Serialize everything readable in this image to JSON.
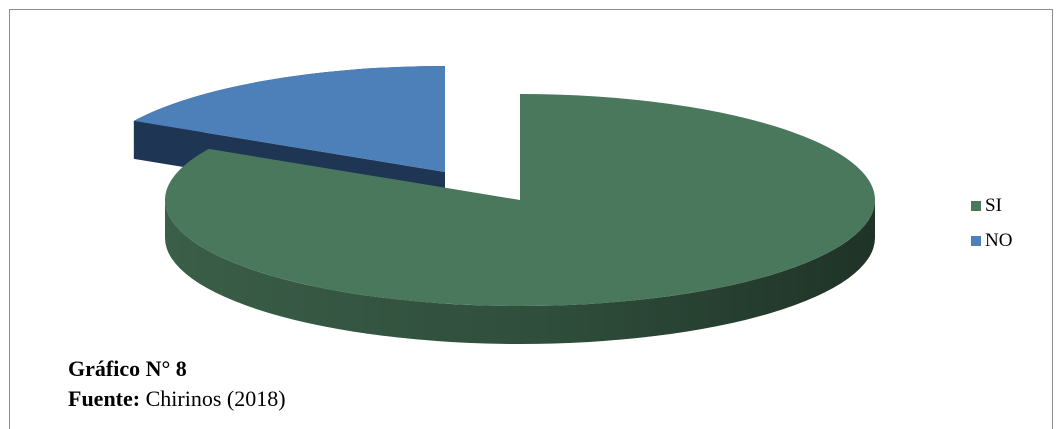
{
  "chart_data": {
    "type": "pie",
    "style": "3d-exploded",
    "categories": [
      "SI",
      "NO"
    ],
    "values": [
      83,
      17
    ],
    "colors": {
      "SI": {
        "top": "#4a785c",
        "side": "#2d4a38"
      },
      "NO": {
        "top": "#4d7fb9",
        "side": "#1f3554"
      }
    },
    "legend": {
      "placement": "right",
      "entries": [
        "SI",
        "NO"
      ]
    }
  },
  "caption": {
    "figure_label": "Gráfico N° 8",
    "source_label": "Fuente:",
    "source_text": " Chirinos (2018)"
  }
}
